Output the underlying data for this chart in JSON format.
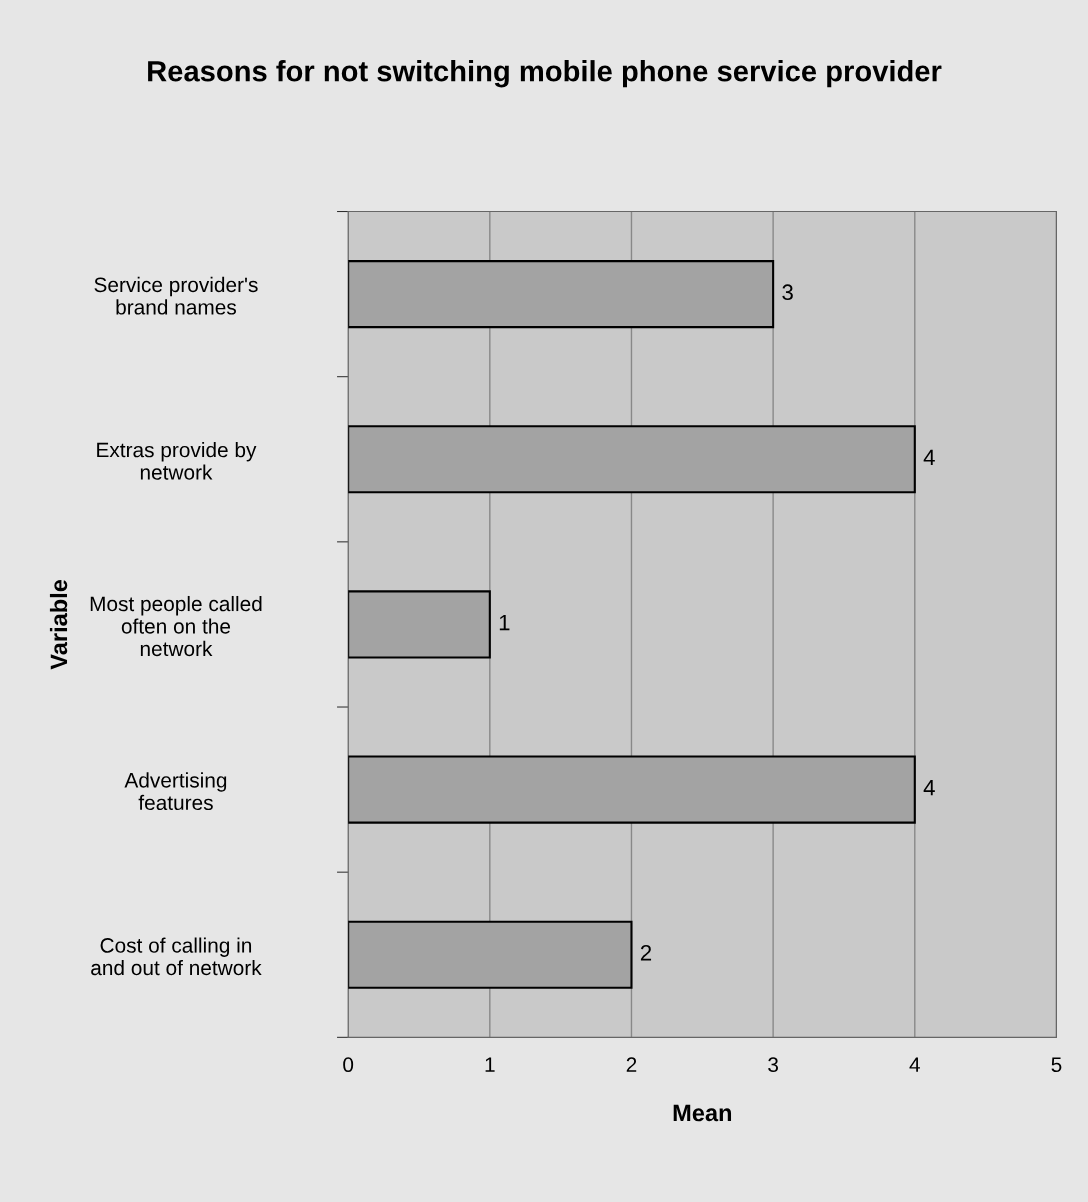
{
  "chart_data": {
    "type": "bar",
    "orientation": "horizontal",
    "title": "Reasons for not switching mobile phone service provider",
    "xlabel": "Mean",
    "ylabel": "Variable",
    "categories": [
      "Service provider's\nbrand names",
      "Extras provide by\nnetwork",
      "Most people called\noften on the\nnetwork",
      "Advertising\nfeatures",
      "Cost of calling in\nand out of network"
    ],
    "values": [
      3,
      4,
      1,
      4,
      2
    ],
    "color": "#a3a3a3",
    "data_labels": true,
    "xlim": [
      0,
      5
    ],
    "xticks": [
      0,
      1,
      2,
      3,
      4,
      5
    ],
    "grid": "x"
  }
}
